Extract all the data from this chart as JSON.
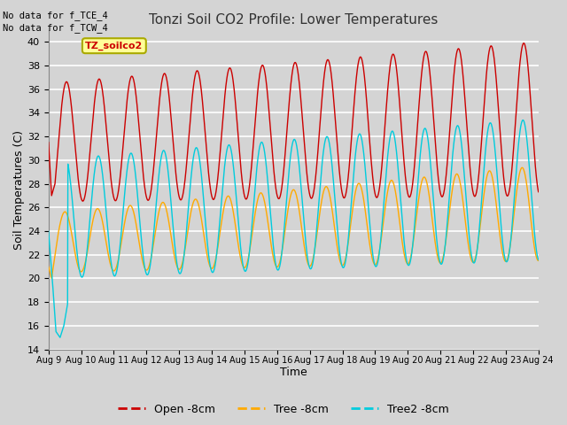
{
  "title": "Tonzi Soil CO2 Profile: Lower Temperatures",
  "xlabel": "Time",
  "ylabel": "Soil Temperatures (C)",
  "ylim": [
    14,
    41
  ],
  "yticks": [
    14,
    16,
    18,
    20,
    22,
    24,
    26,
    28,
    30,
    32,
    34,
    36,
    38,
    40
  ],
  "annotations": [
    "No data for f_TCE_4",
    "No data for f_TCW_4"
  ],
  "small_legend_label": "TZ_soilco2",
  "xtick_labels": [
    "Aug 9",
    "Aug 10",
    "Aug 11",
    "Aug 12",
    "Aug 13",
    "Aug 14",
    "Aug 15",
    "Aug 16",
    "Aug 17",
    "Aug 18",
    "Aug 19",
    "Aug 20",
    "Aug 21",
    "Aug 22",
    "Aug 23",
    "Aug 24"
  ],
  "legend_entries": [
    "Open -8cm",
    "Tree -8cm",
    "Tree2 -8cm"
  ],
  "line_colors": [
    "#cc0000",
    "#ffaa00",
    "#00ccdd"
  ],
  "bg_color": "#d4d4d4",
  "grid_color": "#ffffff",
  "n_days": 15,
  "pts_per_day": 96
}
